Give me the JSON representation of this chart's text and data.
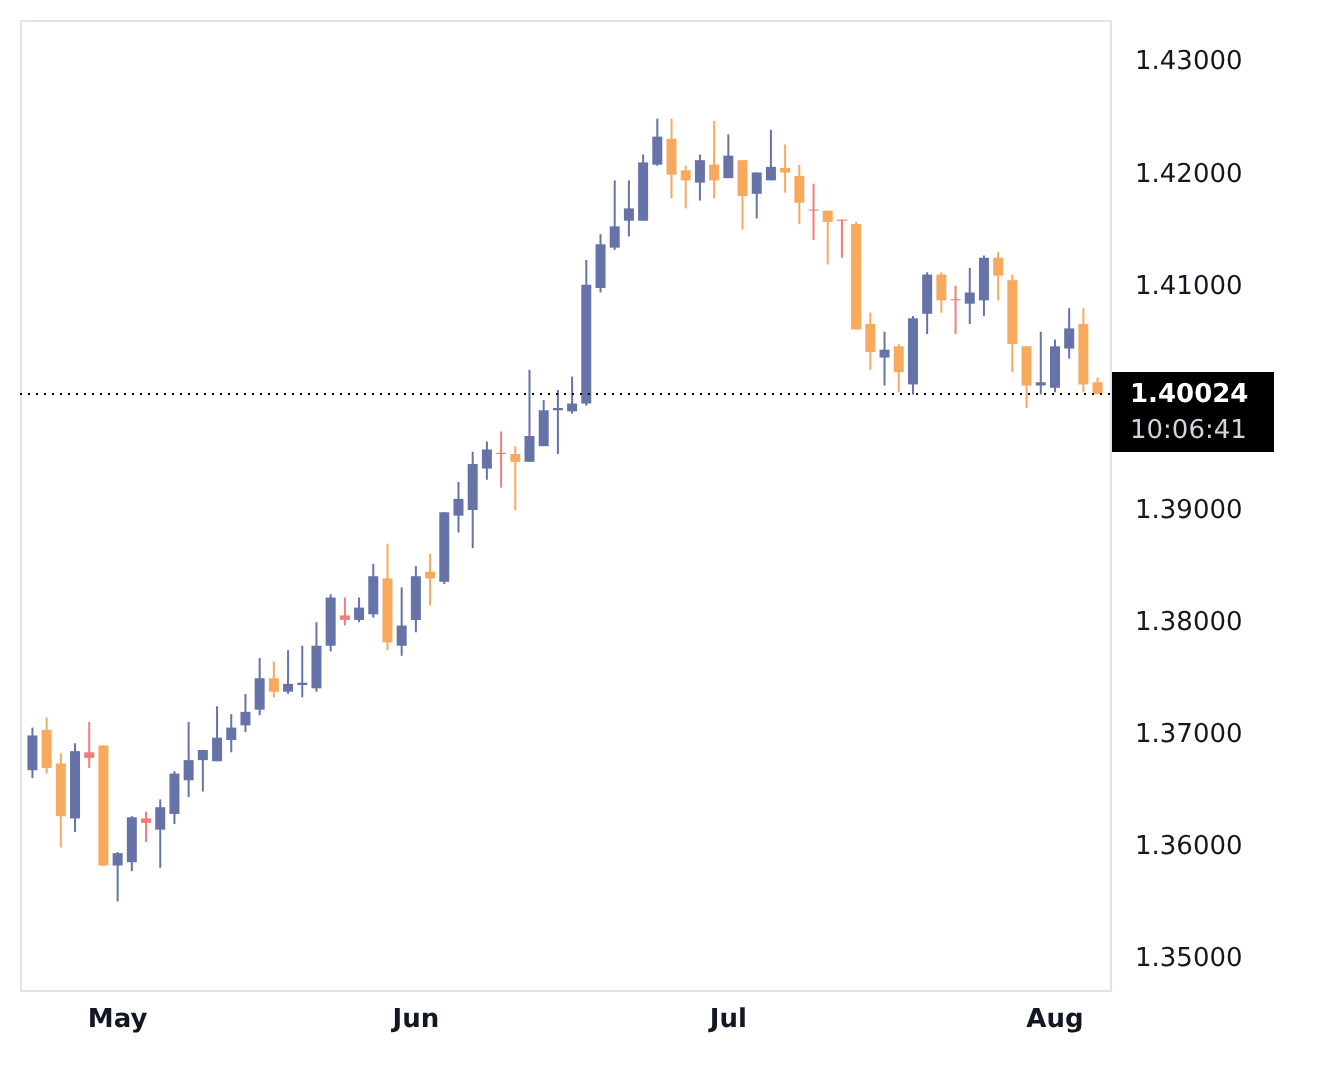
{
  "chart_data": {
    "type": "candlestick",
    "categories": [
      null,
      null,
      null,
      null,
      null,
      null,
      "May",
      null,
      null,
      null,
      null,
      null,
      null,
      null,
      null,
      null,
      null,
      null,
      null,
      null,
      null,
      null,
      null,
      null,
      null,
      null,
      null,
      "Jun",
      null,
      null,
      null,
      null,
      null,
      null,
      null,
      null,
      null,
      null,
      null,
      null,
      null,
      null,
      null,
      null,
      null,
      null,
      null,
      null,
      null,
      "Jul",
      null,
      null,
      null,
      null,
      null,
      null,
      null,
      null,
      null,
      null,
      null,
      null,
      null,
      null,
      null,
      null,
      null,
      null,
      null,
      null,
      null,
      null,
      "Aug",
      null,
      null,
      null
    ],
    "ohlc": [
      [
        1.3667,
        1.3705,
        1.366,
        1.3698
      ],
      [
        1.3703,
        1.3714,
        1.3664,
        1.3669
      ],
      [
        1.3673,
        1.3682,
        1.3598,
        1.3626
      ],
      [
        1.3624,
        1.3691,
        1.3612,
        1.3684
      ],
      [
        1.3683,
        1.371,
        1.3669,
        1.3678
      ],
      [
        1.3689,
        1.3689,
        1.3582,
        1.3582
      ],
      [
        1.3582,
        1.3594,
        1.355,
        1.3593
      ],
      [
        1.3585,
        1.3626,
        1.3577,
        1.3625
      ],
      [
        1.3624,
        1.363,
        1.3603,
        1.362
      ],
      [
        1.3614,
        1.3641,
        1.358,
        1.3634
      ],
      [
        1.3628,
        1.3666,
        1.3619,
        1.3664
      ],
      [
        1.3658,
        1.371,
        1.3643,
        1.3676
      ],
      [
        1.3676,
        1.3685,
        1.3648,
        1.3685
      ],
      [
        1.3675,
        1.3724,
        1.3675,
        1.3696
      ],
      [
        1.3694,
        1.3717,
        1.3683,
        1.3705
      ],
      [
        1.3707,
        1.3735,
        1.3701,
        1.3719
      ],
      [
        1.3721,
        1.3767,
        1.3716,
        1.3749
      ],
      [
        1.3749,
        1.3764,
        1.3732,
        1.3737
      ],
      [
        1.3737,
        1.3774,
        1.3735,
        1.3744
      ],
      [
        1.3743,
        1.3778,
        1.3732,
        1.3745
      ],
      [
        1.374,
        1.3799,
        1.3737,
        1.3778
      ],
      [
        1.3778,
        1.3824,
        1.3773,
        1.3821
      ],
      [
        1.3805,
        1.3821,
        1.3796,
        1.3801
      ],
      [
        1.3801,
        1.3821,
        1.3799,
        1.3812
      ],
      [
        1.3806,
        1.3851,
        1.3803,
        1.384
      ],
      [
        1.3838,
        1.3869,
        1.3774,
        1.3781
      ],
      [
        1.3778,
        1.383,
        1.3769,
        1.3796
      ],
      [
        1.3801,
        1.3849,
        1.379,
        1.384
      ],
      [
        1.3844,
        1.386,
        1.3814,
        1.3838
      ],
      [
        1.3835,
        1.3897,
        1.3833,
        1.3897
      ],
      [
        1.3894,
        1.3924,
        1.3879,
        1.3909
      ],
      [
        1.3899,
        1.3951,
        1.3865,
        1.394
      ],
      [
        1.3936,
        1.396,
        1.3926,
        1.3953
      ],
      [
        1.395,
        1.3969,
        1.3919,
        1.3949
      ],
      [
        1.3949,
        1.3956,
        1.3899,
        1.3942
      ],
      [
        1.3942,
        1.4024,
        1.3942,
        1.3965
      ],
      [
        1.3956,
        1.3997,
        1.3956,
        1.3988
      ],
      [
        1.3988,
        1.4006,
        1.3949,
        1.399
      ],
      [
        1.3987,
        1.4018,
        1.3985,
        1.3994
      ],
      [
        1.3994,
        1.4122,
        1.3992,
        1.41
      ],
      [
        1.4097,
        1.4145,
        1.4093,
        1.4136
      ],
      [
        1.4133,
        1.4193,
        1.4131,
        1.4152
      ],
      [
        1.4157,
        1.4193,
        1.4143,
        1.4168
      ],
      [
        1.4157,
        1.4216,
        1.4157,
        1.4209
      ],
      [
        1.4207,
        1.4248,
        1.4206,
        1.4232
      ],
      [
        1.423,
        1.4248,
        1.4177,
        1.4198
      ],
      [
        1.4202,
        1.4206,
        1.4168,
        1.4193
      ],
      [
        1.4191,
        1.4216,
        1.4175,
        1.4211
      ],
      [
        1.4207,
        1.4246,
        1.4177,
        1.4193
      ],
      [
        1.4195,
        1.4234,
        1.4195,
        1.4215
      ],
      [
        1.4211,
        1.4211,
        1.4149,
        1.4179
      ],
      [
        1.4181,
        1.42,
        1.4159,
        1.42
      ],
      [
        1.4193,
        1.4238,
        1.4193,
        1.4205
      ],
      [
        1.4204,
        1.4225,
        1.4182,
        1.42
      ],
      [
        1.4197,
        1.4207,
        1.4154,
        1.4173
      ],
      [
        1.4167,
        1.419,
        1.414,
        1.4166
      ],
      [
        1.4166,
        1.4166,
        1.4118,
        1.4156
      ],
      [
        1.4158,
        1.4158,
        1.4124,
        1.4157
      ],
      [
        1.4154,
        1.4156,
        1.406,
        1.406
      ],
      [
        1.4065,
        1.4075,
        1.4024,
        1.404
      ],
      [
        1.4035,
        1.4058,
        1.401,
        1.4042
      ],
      [
        1.4045,
        1.4047,
        1.4004,
        1.4022
      ],
      [
        1.4011,
        1.4072,
        1.4002,
        1.407
      ],
      [
        1.4074,
        1.4111,
        1.4056,
        1.4109
      ],
      [
        1.4109,
        1.4111,
        1.4075,
        1.4086
      ],
      [
        1.4087,
        1.4099,
        1.4056,
        1.4086
      ],
      [
        1.4083,
        1.4115,
        1.4065,
        1.4093
      ],
      [
        1.4086,
        1.4126,
        1.4072,
        1.4124
      ],
      [
        1.4124,
        1.4129,
        1.4086,
        1.4108
      ],
      [
        1.4104,
        1.4109,
        1.4022,
        1.4047
      ],
      [
        1.4045,
        1.4045,
        1.399,
        1.401
      ],
      [
        1.401,
        1.4058,
        1.4002,
        1.4013
      ],
      [
        1.4008,
        1.4051,
        1.4004,
        1.4045
      ],
      [
        1.4043,
        1.4079,
        1.4034,
        1.4061
      ],
      [
        1.4065,
        1.4079,
        1.4004,
        1.4011
      ],
      [
        1.4013,
        1.4017,
        1.40024,
        1.40024
      ]
    ],
    "colors": [
      "#6673a8",
      "#f7a95d",
      "#f7a95d",
      "#6673a8",
      "#f27c7c",
      "#f7a95d",
      "#6673a8",
      "#6673a8",
      "#f27c7c",
      "#6673a8",
      "#6673a8",
      "#6673a8",
      "#6673a8",
      "#6673a8",
      "#6673a8",
      "#6673a8",
      "#6673a8",
      "#f7a95d",
      "#6673a8",
      "#6673a8",
      "#6673a8",
      "#6673a8",
      "#f27c7c",
      "#6673a8",
      "#6673a8",
      "#f7a95d",
      "#6673a8",
      "#6673a8",
      "#f7a95d",
      "#6673a8",
      "#6673a8",
      "#6673a8",
      "#6673a8",
      "#f27c7c",
      "#f7a95d",
      "#6673a8",
      "#6673a8",
      "#6673a8",
      "#6673a8",
      "#6673a8",
      "#6673a8",
      "#6673a8",
      "#6673a8",
      "#6673a8",
      "#6673a8",
      "#f7a95d",
      "#f7a95d",
      "#6673a8",
      "#f7a95d",
      "#6673a8",
      "#f7a95d",
      "#6673a8",
      "#6673a8",
      "#f7a95d",
      "#f7a95d",
      "#f27c7c",
      "#f7a95d",
      "#f27c7c",
      "#f7a95d",
      "#f7a95d",
      "#6673a8",
      "#f7a95d",
      "#6673a8",
      "#6673a8",
      "#f7a95d",
      "#f27c7c",
      "#6673a8",
      "#6673a8",
      "#f7a95d",
      "#f7a95d",
      "#f7a95d",
      "#6673a8",
      "#6673a8",
      "#6673a8",
      "#f7a95d",
      "#f7a95d"
    ],
    "ylim": [
      1.3471,
      1.4336
    ],
    "yticks": [
      {
        "value": 1.35,
        "label": "1.35000"
      },
      {
        "value": 1.36,
        "label": "1.36000"
      },
      {
        "value": 1.37,
        "label": "1.37000"
      },
      {
        "value": 1.38,
        "label": "1.38000"
      },
      {
        "value": 1.39,
        "label": "1.39000"
      },
      {
        "value": 1.41,
        "label": "1.41000"
      },
      {
        "value": 1.42,
        "label": "1.42000"
      },
      {
        "value": 1.43,
        "label": "1.43000"
      }
    ],
    "ref_lines": [
      {
        "axis": "y",
        "value": 1.40024,
        "label": "1.40024",
        "color": "#000000",
        "line_style": "dotted"
      }
    ],
    "annotations": [
      "10:06:41"
    ]
  }
}
